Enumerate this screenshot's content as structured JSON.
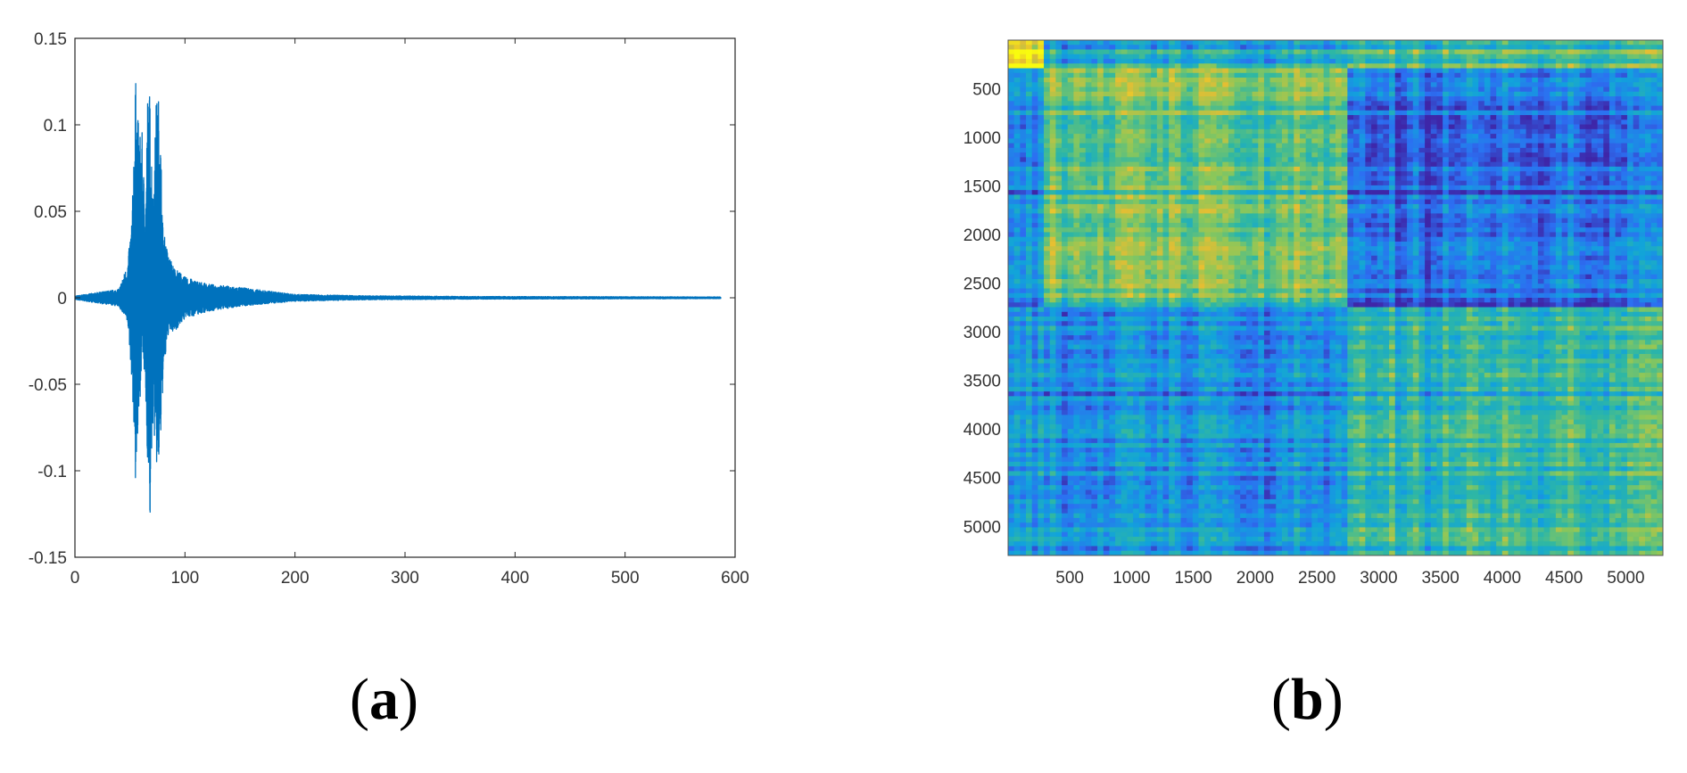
{
  "panels": [
    {
      "id": "a",
      "open": "(",
      "letter": "a",
      "close": ")"
    },
    {
      "id": "b",
      "open": "(",
      "letter": "b",
      "close": ")"
    }
  ],
  "chart_data": [
    {
      "type": "line",
      "panel": "a",
      "title": "",
      "xlabel": "",
      "ylabel": "",
      "xlim": [
        0,
        600
      ],
      "ylim": [
        -0.15,
        0.15
      ],
      "x_ticks": [
        0,
        100,
        200,
        300,
        400,
        500,
        600
      ],
      "y_ticks": [
        -0.15,
        -0.1,
        -0.05,
        0,
        0.05,
        0.1,
        0.15
      ],
      "x_tick_labels": [
        "0",
        "100",
        "200",
        "300",
        "400",
        "500",
        "600"
      ],
      "y_tick_labels": [
        "-0.15",
        "-0.1",
        "-0.05",
        "0",
        "0.05",
        "0.1",
        "0.15"
      ],
      "grid": false,
      "line_color": "#0072BD",
      "series_x_range": [
        0,
        587
      ],
      "envelope": [
        {
          "x": 0,
          "max": 0.001,
          "min": -0.001
        },
        {
          "x": 20,
          "max": 0.003,
          "min": -0.003
        },
        {
          "x": 40,
          "max": 0.005,
          "min": -0.005
        },
        {
          "x": 48,
          "max": 0.02,
          "min": -0.015
        },
        {
          "x": 52,
          "max": 0.05,
          "min": -0.05
        },
        {
          "x": 55,
          "max": 0.128,
          "min": -0.108
        },
        {
          "x": 58,
          "max": 0.098,
          "min": -0.078
        },
        {
          "x": 61,
          "max": 0.096,
          "min": -0.03
        },
        {
          "x": 64,
          "max": 0.05,
          "min": -0.055
        },
        {
          "x": 66,
          "max": 0.118,
          "min": -0.095
        },
        {
          "x": 68,
          "max": 0.12,
          "min": -0.138
        },
        {
          "x": 71,
          "max": 0.06,
          "min": -0.07
        },
        {
          "x": 74,
          "max": 0.117,
          "min": -0.1
        },
        {
          "x": 77,
          "max": 0.116,
          "min": -0.102
        },
        {
          "x": 80,
          "max": 0.04,
          "min": -0.05
        },
        {
          "x": 85,
          "max": 0.025,
          "min": -0.02
        },
        {
          "x": 90,
          "max": 0.018,
          "min": -0.02
        },
        {
          "x": 100,
          "max": 0.012,
          "min": -0.012
        },
        {
          "x": 120,
          "max": 0.008,
          "min": -0.008
        },
        {
          "x": 150,
          "max": 0.006,
          "min": -0.005
        },
        {
          "x": 200,
          "max": 0.002,
          "min": -0.002
        },
        {
          "x": 260,
          "max": 0.0012,
          "min": -0.0012
        },
        {
          "x": 350,
          "max": 0.0008,
          "min": -0.0008
        },
        {
          "x": 587,
          "max": 0.0005,
          "min": -0.0005
        }
      ]
    },
    {
      "type": "heatmap",
      "panel": "b",
      "title": "",
      "xlabel": "",
      "ylabel": "",
      "xlim": [
        1,
        5300
      ],
      "ylim": [
        1,
        5300
      ],
      "y_reversed": true,
      "x_ticks": [
        500,
        1000,
        1500,
        2000,
        2500,
        3000,
        3500,
        4000,
        4500,
        5000
      ],
      "y_ticks": [
        500,
        1000,
        1500,
        2000,
        2500,
        3000,
        3500,
        4000,
        4500,
        5000
      ],
      "x_tick_labels": [
        "500",
        "1000",
        "1500",
        "2000",
        "2500",
        "3000",
        "3500",
        "4000",
        "4500",
        "5000"
      ],
      "y_tick_labels": [
        "500",
        "1000",
        "1500",
        "2000",
        "2500",
        "3000",
        "3500",
        "4000",
        "4500",
        "5000"
      ],
      "colormap": [
        "#3E26A8",
        "#2C6FF2",
        "#11A3DB",
        "#2EB7A4",
        "#8BC75A",
        "#E6BE32",
        "#F9FB0E"
      ],
      "block_boundaries": [
        0,
        300,
        2750,
        5300
      ],
      "block_levels": [
        [
          0.95,
          0.45,
          0.6
        ],
        [
          0.25,
          0.62,
          0.2
        ],
        [
          0.3,
          0.3,
          0.52
        ]
      ]
    }
  ]
}
